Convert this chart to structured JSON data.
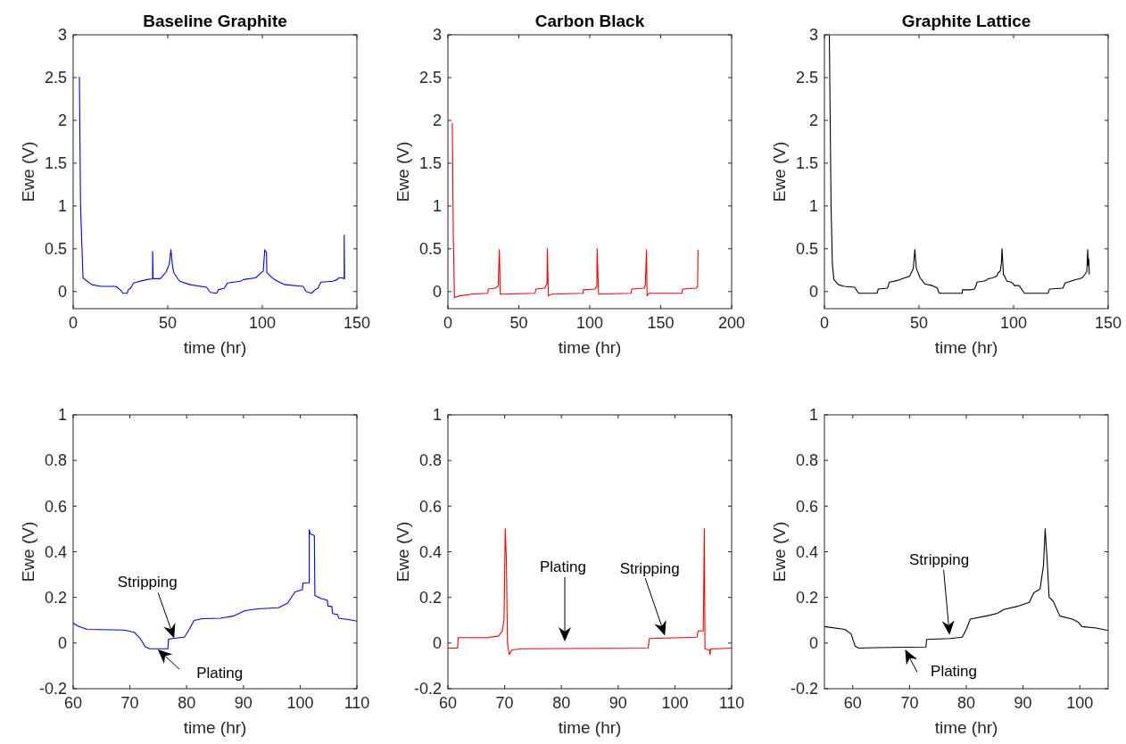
{
  "chart_data": [
    {
      "type": "line",
      "title": "Baseline Graphite",
      "xlabel": "time (hr)",
      "ylabel": "Ewe (V)",
      "xlim": [
        0,
        150
      ],
      "xticks": [
        0,
        50,
        100,
        150
      ],
      "ylim": [
        -0.2,
        3
      ],
      "yticks": [
        0,
        0.5,
        1,
        1.5,
        2,
        2.5,
        3
      ],
      "series": [
        {
          "color": "#0000ff",
          "x": [
            3.3,
            3.9,
            5.2,
            9.9,
            14.6,
            22.5,
            24.9,
            26.4,
            28.5,
            29.1,
            30.4,
            31.9,
            39,
            42,
            42,
            42.3,
            46.1,
            49.2,
            50.8,
            51.7,
            52.4,
            53.2,
            56.3,
            61.8,
            70.5,
            72.5,
            75.9,
            76.7,
            79.9,
            81.5,
            88.5,
            90.1,
            96.4,
            99.5,
            100.5,
            101.3,
            101.6,
            102.2,
            102.4,
            105.8,
            108.9,
            112.1,
            121.6,
            123.1,
            126,
            127.9,
            129.4,
            131,
            137.3,
            139.6,
            140.4,
            142.3,
            143.3,
            143.3,
            143.5
          ],
          "values": [
            2.51,
            1.01,
            0.16,
            0.08,
            0.06,
            0.06,
            0.02,
            -0.02,
            -0.02,
            0.02,
            0.04,
            0.1,
            0.14,
            0.15,
            0.47,
            0.15,
            0.15,
            0.23,
            0.32,
            0.49,
            0.32,
            0.22,
            0.12,
            0.08,
            0.05,
            -0.01,
            -0.02,
            0.02,
            0.04,
            0.1,
            0.12,
            0.14,
            0.16,
            0.22,
            0.24,
            0.49,
            0.47,
            0.46,
            0.22,
            0.15,
            0.11,
            0.08,
            0.06,
            0,
            -0.02,
            0.02,
            0.04,
            0.11,
            0.12,
            0.14,
            0.16,
            0.16,
            0.15,
            0.66,
            0.15
          ]
        }
      ]
    },
    {
      "type": "line",
      "title": "Carbon Black",
      "xlabel": "time (hr)",
      "ylabel": "Ewe (V)",
      "xlim": [
        0,
        200
      ],
      "xticks": [
        0,
        50,
        100,
        150,
        200
      ],
      "ylim": [
        -0.2,
        3
      ],
      "yticks": [
        0,
        0.5,
        1,
        1.5,
        2,
        2.5,
        3
      ],
      "series": [
        {
          "color": "#ff0000",
          "x": [
            3.1,
            3.8,
            4.6,
            8.3,
            16.7,
            28.1,
            28.5,
            33.3,
            35.4,
            36.3,
            36.9,
            39.6,
            61.5,
            62,
            68.3,
            69.9,
            70.1,
            70.8,
            73.2,
            95.3,
            95.5,
            103.9,
            104.1,
            105,
            105.2,
            106.2,
            129.2,
            129.6,
            138.5,
            139.2,
            140,
            140.4,
            141.7,
            165,
            165.4,
            175,
            176,
            176.3
          ],
          "values": [
            1.97,
            0.67,
            -0.07,
            -0.05,
            -0.03,
            -0.02,
            0.03,
            0.04,
            0.06,
            0.49,
            -0.03,
            -0.03,
            -0.02,
            0.03,
            0.04,
            0.1,
            0.5,
            -0.05,
            -0.03,
            -0.02,
            0.02,
            0.03,
            0.05,
            0.05,
            0.5,
            -0.03,
            -0.02,
            0.03,
            0.04,
            0.08,
            0.49,
            -0.05,
            -0.02,
            -0.02,
            0.03,
            0.04,
            0.06,
            0.49
          ]
        }
      ]
    },
    {
      "type": "line",
      "title": "Graphite Lattice",
      "xlabel": "time (hr)",
      "ylabel": "Ewe (V)",
      "xlim": [
        0,
        150
      ],
      "xticks": [
        0,
        50,
        100,
        150
      ],
      "ylim": [
        -0.2,
        3
      ],
      "yticks": [
        0,
        0.5,
        1,
        1.5,
        2,
        2.5,
        3
      ],
      "series": [
        {
          "color": "#000000",
          "x": [
            2.6,
            3.5,
            4.2,
            5,
            7.4,
            10.5,
            16,
            18.1,
            27.8,
            28.5,
            33.3,
            34.4,
            38.8,
            41.2,
            45.1,
            47,
            47.8,
            48.6,
            50.6,
            53,
            56.9,
            59.7,
            60.4,
            61,
            64.2,
            72.9,
            73,
            77.1,
            79.3,
            80,
            80.7,
            83.8,
            85.5,
            86.6,
            88.9,
            91.1,
            91.9,
            93,
            93.6,
            93.9,
            94.3,
            94.6,
            95.3,
            96.5,
            98.7,
            99.8,
            100.4,
            103,
            105.7,
            118.2,
            119,
            126.1,
            127.2,
            131.6,
            136.3,
            138.7,
            139.2,
            139.5,
            139.8,
            140
          ],
          "values": [
            3,
            1.01,
            0.32,
            0.14,
            0.08,
            0.06,
            0.05,
            -0.02,
            -0.02,
            0.03,
            0.04,
            0.11,
            0.13,
            0.15,
            0.18,
            0.27,
            0.49,
            0.27,
            0.16,
            0.09,
            0.07,
            0.04,
            -0.01,
            -0.02,
            -0.02,
            -0.02,
            0.02,
            0.02,
            0.03,
            0.06,
            0.11,
            0.12,
            0.13,
            0.15,
            0.16,
            0.18,
            0.22,
            0.24,
            0.34,
            0.5,
            0.34,
            0.2,
            0.18,
            0.12,
            0.11,
            0.09,
            0.07,
            0.07,
            -0.02,
            -0.02,
            0.03,
            0.04,
            0.1,
            0.13,
            0.16,
            0.23,
            0.49,
            0.3,
            0.38,
            0.2
          ]
        }
      ]
    },
    {
      "type": "line",
      "xlabel": "time (hr)",
      "ylabel": "Ewe (V)",
      "xlim": [
        60,
        110
      ],
      "xticks": [
        60,
        70,
        80,
        90,
        100,
        110
      ],
      "ylim": [
        -0.2,
        1
      ],
      "yticks": [
        -0.2,
        0,
        0.2,
        0.4,
        0.6,
        0.8,
        1
      ],
      "series": [
        {
          "color": "#0000ff",
          "x": [
            60,
            60.9,
            62.5,
            68.9,
            70.8,
            71.9,
            72.7,
            73.5,
            76.7,
            76.8,
            77.8,
            79.6,
            80.4,
            81.3,
            82.8,
            86,
            88.2,
            90.3,
            92.5,
            96.2,
            97.8,
            99.1,
            100.4,
            100.5,
            101.6,
            101.6,
            101.8,
            102.5,
            102.6,
            103.7,
            104.8,
            104.9,
            105.6,
            105.7,
            106.6,
            106.8,
            108.5,
            110
          ],
          "values": [
            0.087,
            0.074,
            0.06,
            0.057,
            0.047,
            0.017,
            -0.016,
            -0.025,
            -0.025,
            0.017,
            0.021,
            0.026,
            0.057,
            0.099,
            0.107,
            0.109,
            0.118,
            0.142,
            0.15,
            0.155,
            0.175,
            0.224,
            0.234,
            0.263,
            0.264,
            0.497,
            0.478,
            0.471,
            0.208,
            0.195,
            0.188,
            0.162,
            0.16,
            0.129,
            0.125,
            0.109,
            0.103,
            0.096
          ]
        }
      ],
      "annotations": [
        "Stripping",
        {
          "text": "Plating",
          "x": 74.8,
          "y": -0.025
        }
      ]
    },
    {
      "type": "line",
      "xlabel": "time (hr)",
      "ylabel": "Ewe (V)",
      "xlim": [
        60,
        110
      ],
      "xticks": [
        60,
        70,
        80,
        90,
        100,
        110
      ],
      "ylim": [
        -0.2,
        1
      ],
      "yticks": [
        -0.2,
        0,
        0.2,
        0.4,
        0.6,
        0.8,
        1
      ],
      "series": [
        {
          "color": "#ff0000",
          "x": [
            60,
            61.7,
            61.8,
            66.8,
            68.9,
            69.6,
            69.9,
            70.1,
            70.3,
            70.5,
            70.8,
            71.3,
            73.2,
            95.3,
            95.5,
            98.4,
            103.9,
            104.1,
            105,
            105.2,
            105.3,
            106.1,
            106.2,
            106.3,
            110
          ],
          "values": [
            -0.022,
            -0.022,
            0.024,
            0.024,
            0.03,
            0.053,
            0.105,
            0.5,
            0.37,
            0,
            -0.05,
            -0.03,
            -0.025,
            -0.022,
            0.02,
            0.022,
            0.026,
            0.053,
            0.053,
            0.5,
            -0.026,
            -0.03,
            -0.05,
            -0.026,
            -0.022
          ]
        }
      ],
      "annotations": [
        "Plating",
        "Stripping"
      ]
    },
    {
      "type": "line",
      "xlabel": "time (hr)",
      "ylabel": "Ewe (V)",
      "xlim": [
        55,
        105
      ],
      "xticks": [
        60,
        70,
        80,
        90,
        100
      ],
      "ylim": [
        -0.2,
        1
      ],
      "yticks": [
        -0.2,
        0,
        0.2,
        0.4,
        0.6,
        0.8,
        1
      ],
      "series": [
        {
          "color": "#000000",
          "x": [
            55,
            58.6,
            59.7,
            60.4,
            61,
            64.2,
            72.9,
            73,
            77.1,
            79.3,
            80,
            80.7,
            83.8,
            85.5,
            86.6,
            88.9,
            91.1,
            91.9,
            93,
            93.6,
            93.9,
            94.3,
            94.6,
            95.3,
            96.5,
            98.7,
            99.8,
            100.4,
            102.9,
            105
          ],
          "values": [
            0.072,
            0.06,
            0.04,
            -0.013,
            -0.022,
            -0.02,
            -0.017,
            0.016,
            0.02,
            0.026,
            0.06,
            0.105,
            0.12,
            0.13,
            0.147,
            0.16,
            0.178,
            0.22,
            0.237,
            0.34,
            0.5,
            0.34,
            0.2,
            0.184,
            0.118,
            0.105,
            0.09,
            0.072,
            0.066,
            0.055
          ]
        }
      ],
      "annotations": [
        "Stripping",
        {
          "text": "Plating",
          "x": 69,
          "y": -0.018
        }
      ]
    }
  ]
}
